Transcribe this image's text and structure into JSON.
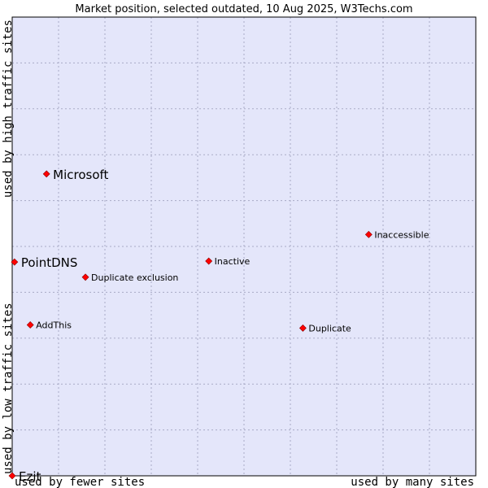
{
  "chart_data": {
    "type": "scatter",
    "title": "Market position, selected outdated, 10 Aug 2025, W3Techs.com",
    "xlabel_left": "used by fewer sites",
    "xlabel_right": "used by many sites",
    "ylabel_bottom": "used by low traffic sites",
    "ylabel_top": "used by high traffic sites",
    "xlim": [
      0,
      10
    ],
    "ylim": [
      0,
      10
    ],
    "grid": true,
    "colors": {
      "plot_background": "#e4e6fa",
      "grid": "#a9abc6",
      "marker": "#ff0000",
      "marker_stroke": "#8b0000"
    },
    "points": [
      {
        "label": "Microsoft",
        "x": 0.74,
        "y": 6.58,
        "emphasis": "large"
      },
      {
        "label": "PointDNS",
        "x": 0.05,
        "y": 4.66,
        "emphasis": "large"
      },
      {
        "label": "Ezit",
        "x": 0.0,
        "y": 0.0,
        "emphasis": "large"
      },
      {
        "label": "Inaccessible",
        "x": 7.69,
        "y": 5.26,
        "emphasis": "small"
      },
      {
        "label": "Inactive",
        "x": 4.24,
        "y": 4.68,
        "emphasis": "small"
      },
      {
        "label": "Duplicate exclusion",
        "x": 1.58,
        "y": 4.33,
        "emphasis": "small"
      },
      {
        "label": "AddThis",
        "x": 0.39,
        "y": 3.29,
        "emphasis": "small"
      },
      {
        "label": "Duplicate",
        "x": 6.27,
        "y": 3.22,
        "emphasis": "small"
      }
    ]
  }
}
